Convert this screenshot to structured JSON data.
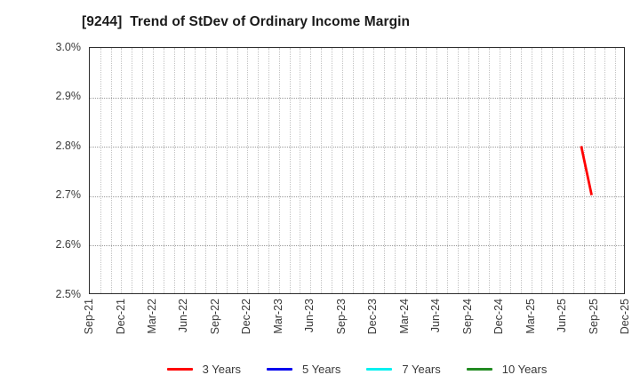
{
  "chart_data": {
    "type": "line",
    "title": "[9244]  Trend of StDev of Ordinary Income Margin",
    "x_axis": {
      "start": "Sep-21",
      "end": "Dec-25",
      "gridline_interval": "monthly",
      "tick_labels": [
        "Sep-21",
        "Dec-21",
        "Mar-22",
        "Jun-22",
        "Sep-22",
        "Dec-22",
        "Mar-23",
        "Jun-23",
        "Sep-23",
        "Dec-23",
        "Mar-24",
        "Jun-24",
        "Sep-24",
        "Dec-24",
        "Mar-25",
        "Jun-25",
        "Sep-25",
        "Dec-25"
      ]
    },
    "y_axis": {
      "min": 2.5,
      "max": 3.0,
      "unit": "%",
      "tick_labels": [
        "3.0%",
        "2.9%",
        "2.8%",
        "2.7%",
        "2.6%",
        "2.5%"
      ]
    },
    "grid": true,
    "legend_position": "bottom",
    "series": [
      {
        "name": "3 Years",
        "color": "#ff0000",
        "points": [
          {
            "x": "Aug-25",
            "y": 2.8
          },
          {
            "x": "Sep-25",
            "y": 2.7
          }
        ]
      },
      {
        "name": "5 Years",
        "color": "#0000ee",
        "points": []
      },
      {
        "name": "7 Years",
        "color": "#00f0f0",
        "points": []
      },
      {
        "name": "10 Years",
        "color": "#228b22",
        "points": []
      }
    ]
  }
}
